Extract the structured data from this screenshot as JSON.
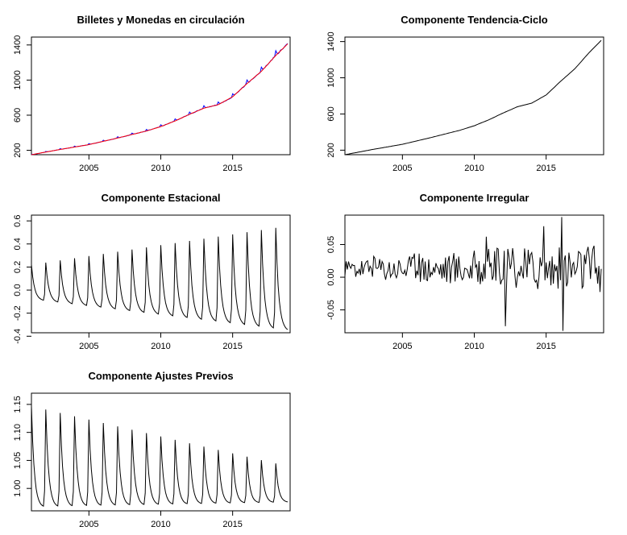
{
  "chart_data": [
    {
      "type": "line",
      "title": "Billetes y Monedas en circulación",
      "xlim": [
        2001,
        2019
      ],
      "ylim": [
        150,
        1490
      ],
      "xticks": [
        "2005",
        "2010",
        "2015"
      ],
      "xtick_values": [
        2005,
        2010,
        2015
      ],
      "yticks": [
        "200",
        "600",
        "1000",
        "1400"
      ],
      "ytick_values": [
        200,
        600,
        1000,
        1400
      ],
      "series": [
        {
          "kind": "trend_seasonal",
          "color": "#0000ff"
        },
        {
          "kind": "trend",
          "color": "#ff0000"
        }
      ],
      "trend_knots": [
        [
          2001,
          150
        ],
        [
          2003,
          210
        ],
        [
          2005,
          265
        ],
        [
          2007,
          340
        ],
        [
          2009,
          420
        ],
        [
          2010,
          470
        ],
        [
          2011,
          535
        ],
        [
          2012,
          610
        ],
        [
          2013,
          680
        ],
        [
          2014,
          720
        ],
        [
          2015,
          810
        ],
        [
          2016,
          960
        ],
        [
          2017,
          1100
        ],
        [
          2018,
          1280
        ],
        [
          2019,
          1440
        ]
      ],
      "seasonal_amplitude": 0.08
    },
    {
      "type": "line",
      "title": "Componente Tendencia-Ciclo",
      "xlim": [
        2001,
        2019
      ],
      "ylim": [
        150,
        1450
      ],
      "xticks": [
        "2005",
        "2010",
        "2015"
      ],
      "xtick_values": [
        2005,
        2010,
        2015
      ],
      "yticks": [
        "200",
        "600",
        "1000",
        "1400"
      ],
      "ytick_values": [
        200,
        600,
        1000,
        1400
      ],
      "series": [
        {
          "kind": "trend",
          "color": "#000000"
        }
      ],
      "trend_knots": [
        [
          2001,
          150
        ],
        [
          2003,
          210
        ],
        [
          2005,
          265
        ],
        [
          2007,
          340
        ],
        [
          2009,
          420
        ],
        [
          2010,
          470
        ],
        [
          2011,
          535
        ],
        [
          2012,
          610
        ],
        [
          2013,
          680
        ],
        [
          2014,
          720
        ],
        [
          2015,
          810
        ],
        [
          2016,
          960
        ],
        [
          2017,
          1100
        ],
        [
          2018,
          1280
        ],
        [
          2019,
          1440
        ]
      ]
    },
    {
      "type": "line",
      "title": "Componente Estacional",
      "xlim": [
        2001,
        2019
      ],
      "ylim": [
        -0.37,
        0.65
      ],
      "xticks": [
        "2005",
        "2010",
        "2015"
      ],
      "xtick_values": [
        2005,
        2010,
        2015
      ],
      "yticks": [
        "-0.4",
        "-0.2",
        "0.0",
        "0.2",
        "0.4",
        "0.6"
      ],
      "ytick_values": [
        -0.4,
        -0.2,
        0.0,
        0.2,
        0.4,
        0.6
      ],
      "series": [
        {
          "kind": "seasonal",
          "color": "#000000"
        }
      ],
      "peak_start": 0.25,
      "peak_end": 0.65,
      "trough_start": -0.08,
      "trough_end": -0.36
    },
    {
      "type": "line",
      "title": "Componente Irregular",
      "xlim": [
        2001,
        2019
      ],
      "ylim": [
        -0.085,
        0.095
      ],
      "xticks": [
        "2005",
        "2010",
        "2015"
      ],
      "xtick_values": [
        2005,
        2010,
        2015
      ],
      "yticks": [
        "-0.05",
        "0.00",
        "0.05"
      ],
      "ytick_values": [
        -0.05,
        0.0,
        0.05
      ],
      "series": [
        {
          "kind": "irregular",
          "color": "#000000"
        }
      ],
      "spikes": [
        [
          2012.2,
          -0.075
        ],
        [
          2016.2,
          -0.082
        ],
        [
          2016.1,
          0.092
        ],
        [
          2010.8,
          0.062
        ],
        [
          2014.8,
          0.078
        ]
      ]
    },
    {
      "type": "line",
      "title": "Componente Ajustes Previos",
      "xlim": [
        2001,
        2019
      ],
      "ylim": [
        0.96,
        1.17
      ],
      "xticks": [
        "2005",
        "2010",
        "2015"
      ],
      "xtick_values": [
        2005,
        2010,
        2015
      ],
      "yticks": [
        "1.00",
        "1.05",
        "1.10",
        "1.15"
      ],
      "ytick_values": [
        1.0,
        1.05,
        1.1,
        1.15
      ],
      "series": [
        {
          "kind": "adjust",
          "color": "#000000"
        }
      ],
      "peak_start": 1.165,
      "peak_end": 1.045,
      "trough_start": 0.965,
      "trough_end": 0.975
    }
  ]
}
